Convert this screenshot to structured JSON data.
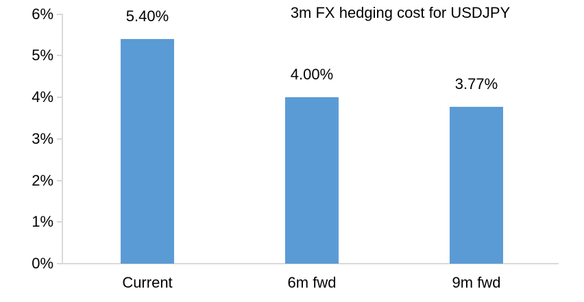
{
  "chart_data": {
    "type": "bar",
    "title": "3m FX hedging cost for USDJPY",
    "categories": [
      "Current",
      "6m fwd",
      "9m fwd"
    ],
    "values": [
      5.4,
      4.0,
      3.77
    ],
    "value_labels": [
      "5.40%",
      "4.00%",
      "3.77%"
    ],
    "xlabel": "",
    "ylabel": "",
    "ylim": [
      0,
      6
    ],
    "ytick_values": [
      0,
      1,
      2,
      3,
      4,
      5,
      6
    ],
    "ytick_labels": [
      "0%",
      "1%",
      "2%",
      "3%",
      "4%",
      "5%",
      "6%"
    ],
    "grid": false,
    "legend": null,
    "bar_color": "#5B9BD5",
    "axis_color": "#D9D9D9",
    "text_color": "#000000",
    "background_color": "#FFFFFF"
  }
}
